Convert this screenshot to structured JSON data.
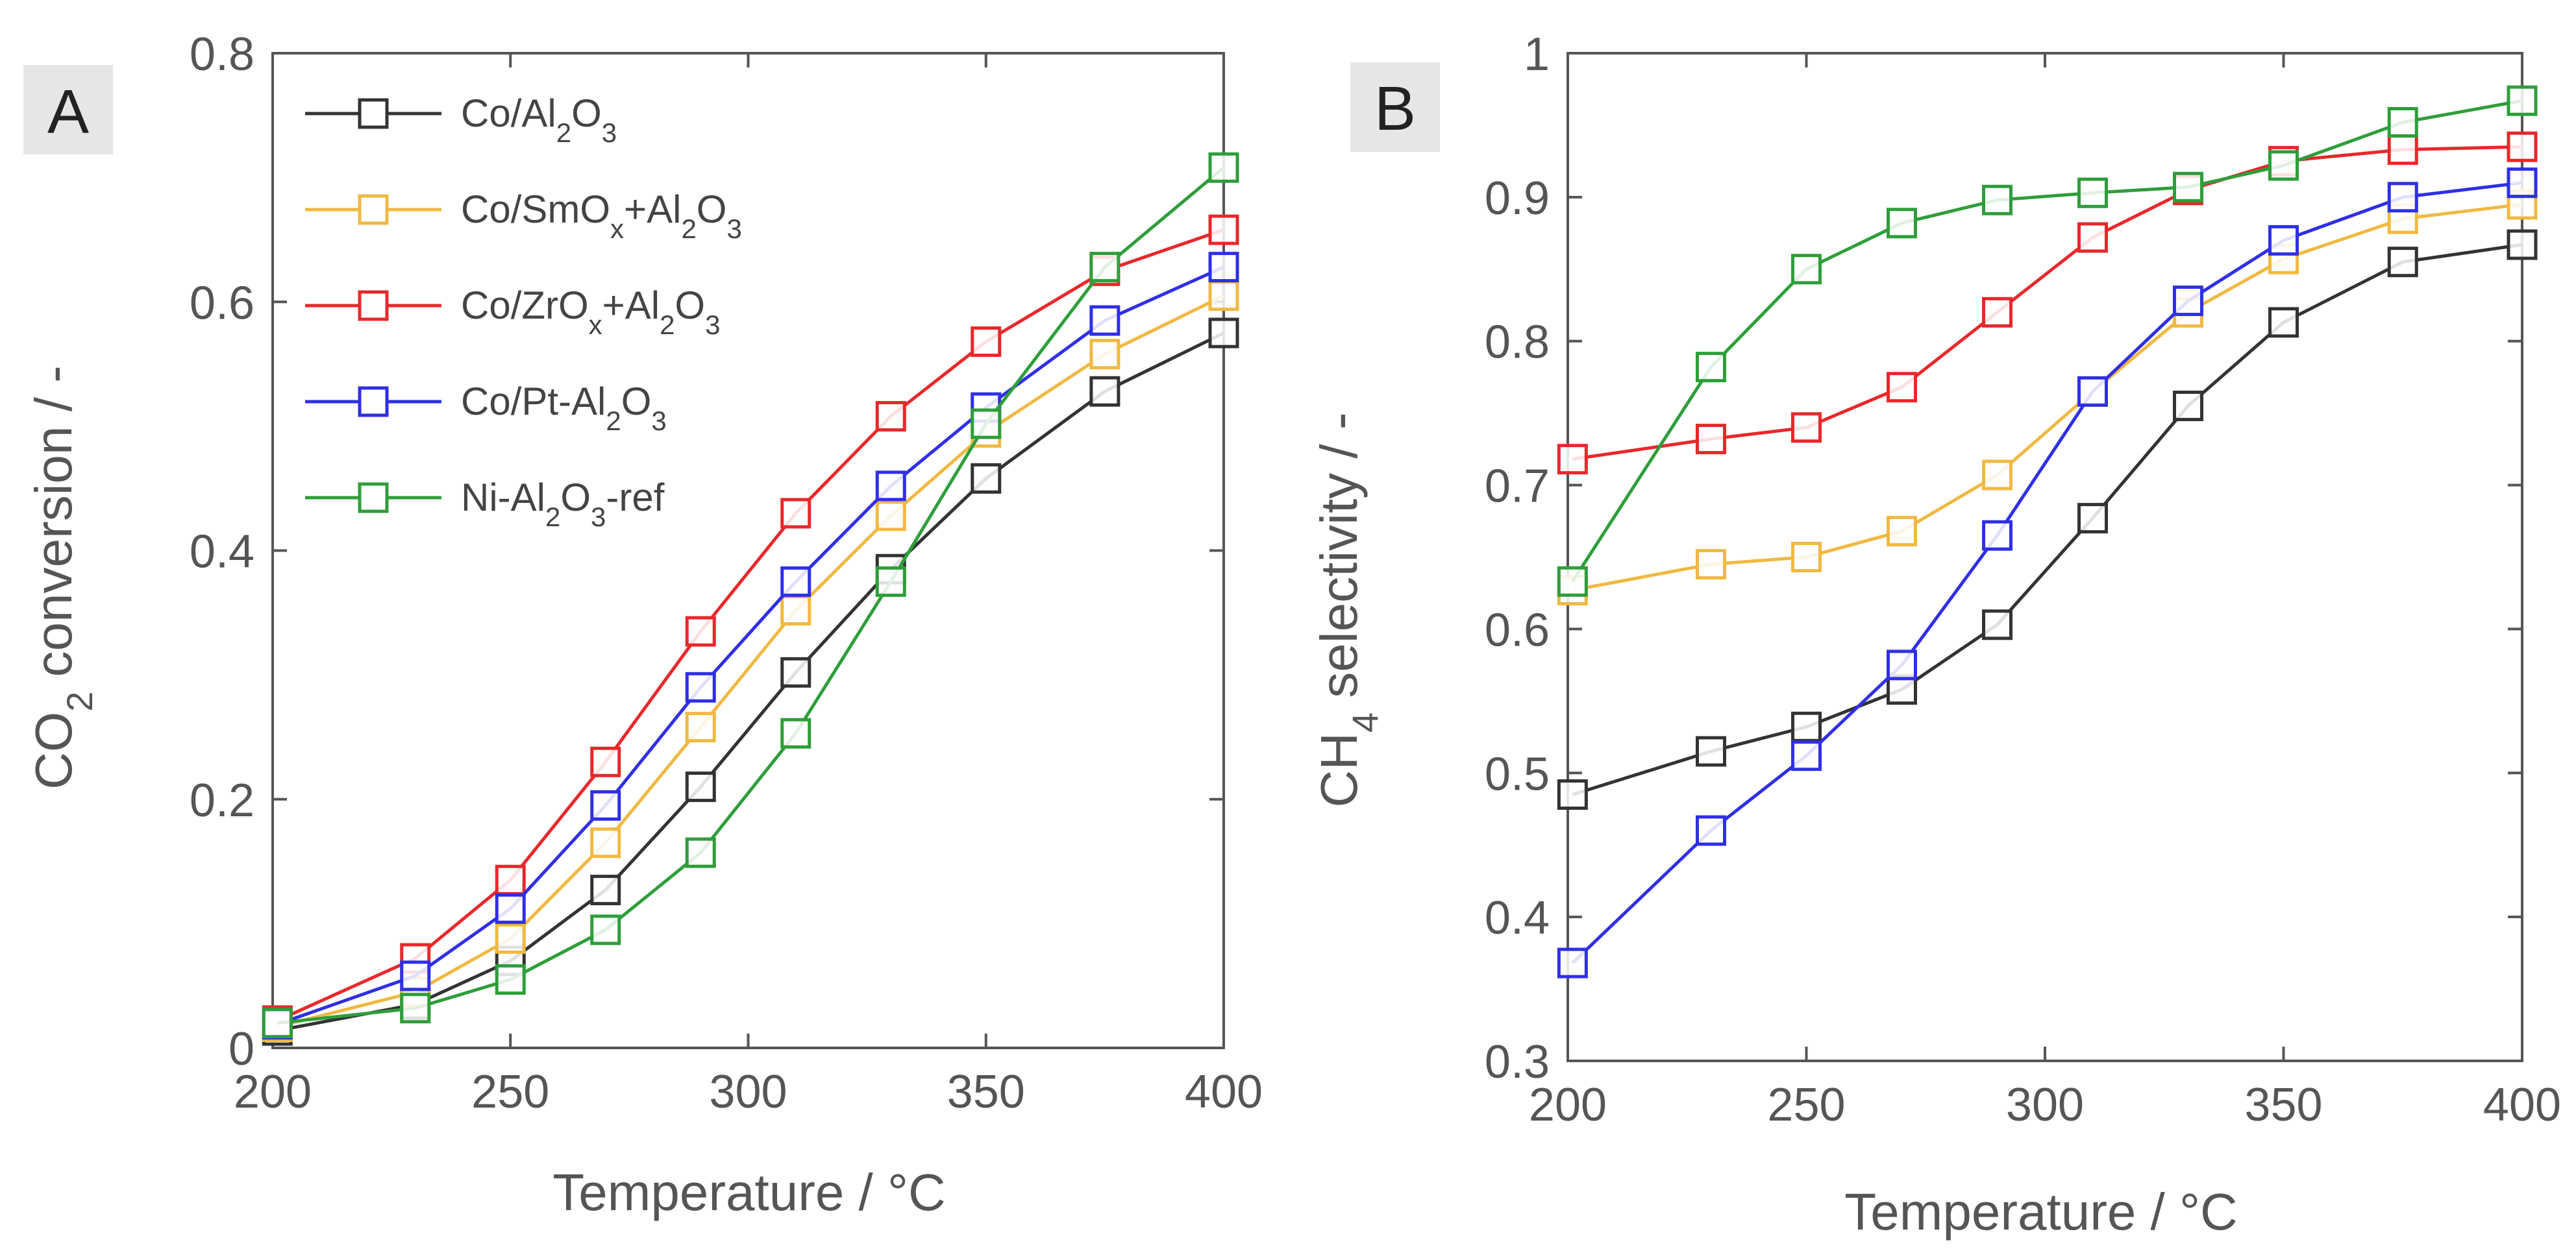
{
  "chart_data": [
    {
      "panel": "A",
      "type": "line",
      "xlabel": "Temperature / °C",
      "ylabel": "CO2 conversion / -",
      "ylabel_parts": [
        "CO",
        "2",
        " conversion / -"
      ],
      "xlim": [
        200,
        400
      ],
      "ylim": [
        0,
        0.8
      ],
      "xticks": [
        200,
        250,
        300,
        350,
        400
      ],
      "yticks": [
        0,
        0.2,
        0.4,
        0.6,
        0.8
      ],
      "ytick_labels": [
        "0",
        "0.2",
        "0.4",
        "0.6",
        "0.8"
      ],
      "x": [
        201,
        230,
        250,
        270,
        290,
        310,
        330,
        350,
        375,
        400
      ],
      "series": [
        {
          "key": "co_al2o3",
          "name": "Co/Al2O3",
          "values": [
            0.014,
            0.035,
            0.07,
            0.127,
            0.21,
            0.302,
            0.385,
            0.458,
            0.528,
            0.575
          ]
        },
        {
          "key": "co_smox",
          "name": "Co/SmOx+Al2O3",
          "values": [
            0.017,
            0.045,
            0.088,
            0.165,
            0.258,
            0.352,
            0.428,
            0.495,
            0.558,
            0.605
          ]
        },
        {
          "key": "co_zrox",
          "name": "Co/ZrOx+Al2O3",
          "values": [
            0.022,
            0.072,
            0.135,
            0.23,
            0.335,
            0.43,
            0.508,
            0.568,
            0.625,
            0.658
          ]
        },
        {
          "key": "co_pt",
          "name": "Co/Pt-Al2O3",
          "values": [
            0.019,
            0.058,
            0.112,
            0.195,
            0.29,
            0.375,
            0.452,
            0.515,
            0.585,
            0.628
          ]
        },
        {
          "key": "ni_ref",
          "name": "Ni-Al2O3-ref",
          "values": [
            0.02,
            0.032,
            0.055,
            0.095,
            0.157,
            0.253,
            0.375,
            0.502,
            0.628,
            0.708
          ]
        }
      ],
      "legend": {
        "position": "top-left",
        "entries": [
          {
            "key": "co_al2o3",
            "parts": [
              "Co/Al",
              "2",
              "O",
              "3"
            ]
          },
          {
            "key": "co_smox",
            "parts": [
              "Co/SmO",
              "x",
              "+Al",
              "2",
              "O",
              "3"
            ]
          },
          {
            "key": "co_zrox",
            "parts": [
              "Co/ZrO",
              "x",
              "+Al",
              "2",
              "O",
              "3"
            ]
          },
          {
            "key": "co_pt",
            "parts": [
              "Co/Pt-Al",
              "2",
              "O",
              "3"
            ]
          },
          {
            "key": "ni_ref",
            "parts": [
              "Ni-Al",
              "2",
              "O",
              "3",
              "-ref"
            ]
          }
        ]
      },
      "grid": false
    },
    {
      "panel": "B",
      "type": "line",
      "xlabel": "Temperature / °C",
      "ylabel": "CH4 selectivity / -",
      "ylabel_parts": [
        "CH",
        "4",
        " selectivity / -"
      ],
      "xlim": [
        200,
        400
      ],
      "ylim": [
        0.3,
        1.0
      ],
      "xticks": [
        200,
        250,
        300,
        350,
        400
      ],
      "yticks": [
        0.3,
        0.4,
        0.5,
        0.6,
        0.7,
        0.8,
        0.9,
        1.0
      ],
      "ytick_labels": [
        "0.3",
        "0.4",
        "0.5",
        "0.6",
        "0.7",
        "0.8",
        "0.9",
        "1"
      ],
      "x": [
        201,
        230,
        250,
        270,
        290,
        310,
        330,
        350,
        375,
        400
      ],
      "series": [
        {
          "key": "co_al2o3",
          "name": "Co/Al2O3",
          "values": [
            0.485,
            0.515,
            0.532,
            0.558,
            0.603,
            0.677,
            0.755,
            0.813,
            0.855,
            0.867
          ]
        },
        {
          "key": "co_smox",
          "name": "Co/SmOx+Al2O3",
          "values": [
            0.627,
            0.645,
            0.65,
            0.668,
            0.707,
            0.765,
            0.82,
            0.857,
            0.885,
            0.895
          ]
        },
        {
          "key": "co_zrox",
          "name": "Co/ZrOx+Al2O3",
          "values": [
            0.718,
            0.732,
            0.74,
            0.768,
            0.82,
            0.872,
            0.905,
            0.925,
            0.933,
            0.935
          ]
        },
        {
          "key": "co_pt",
          "name": "Co/Pt-Al2O3",
          "values": [
            0.368,
            0.46,
            0.512,
            0.575,
            0.665,
            0.765,
            0.828,
            0.87,
            0.9,
            0.91
          ]
        },
        {
          "key": "ni_ref",
          "name": "Ni-Al2O3-ref",
          "values": [
            0.633,
            0.782,
            0.85,
            0.882,
            0.898,
            0.903,
            0.907,
            0.922,
            0.952,
            0.967
          ]
        }
      ],
      "grid": false
    }
  ],
  "colors": {
    "co_al2o3": "#333333",
    "co_smox": "#f0b942",
    "co_zrox": "#e8282b",
    "co_pt": "#2f2fe6",
    "ni_ref": "#2e9e3a",
    "axis": "#555555",
    "panel_label_bg": "#e6e6e6"
  }
}
